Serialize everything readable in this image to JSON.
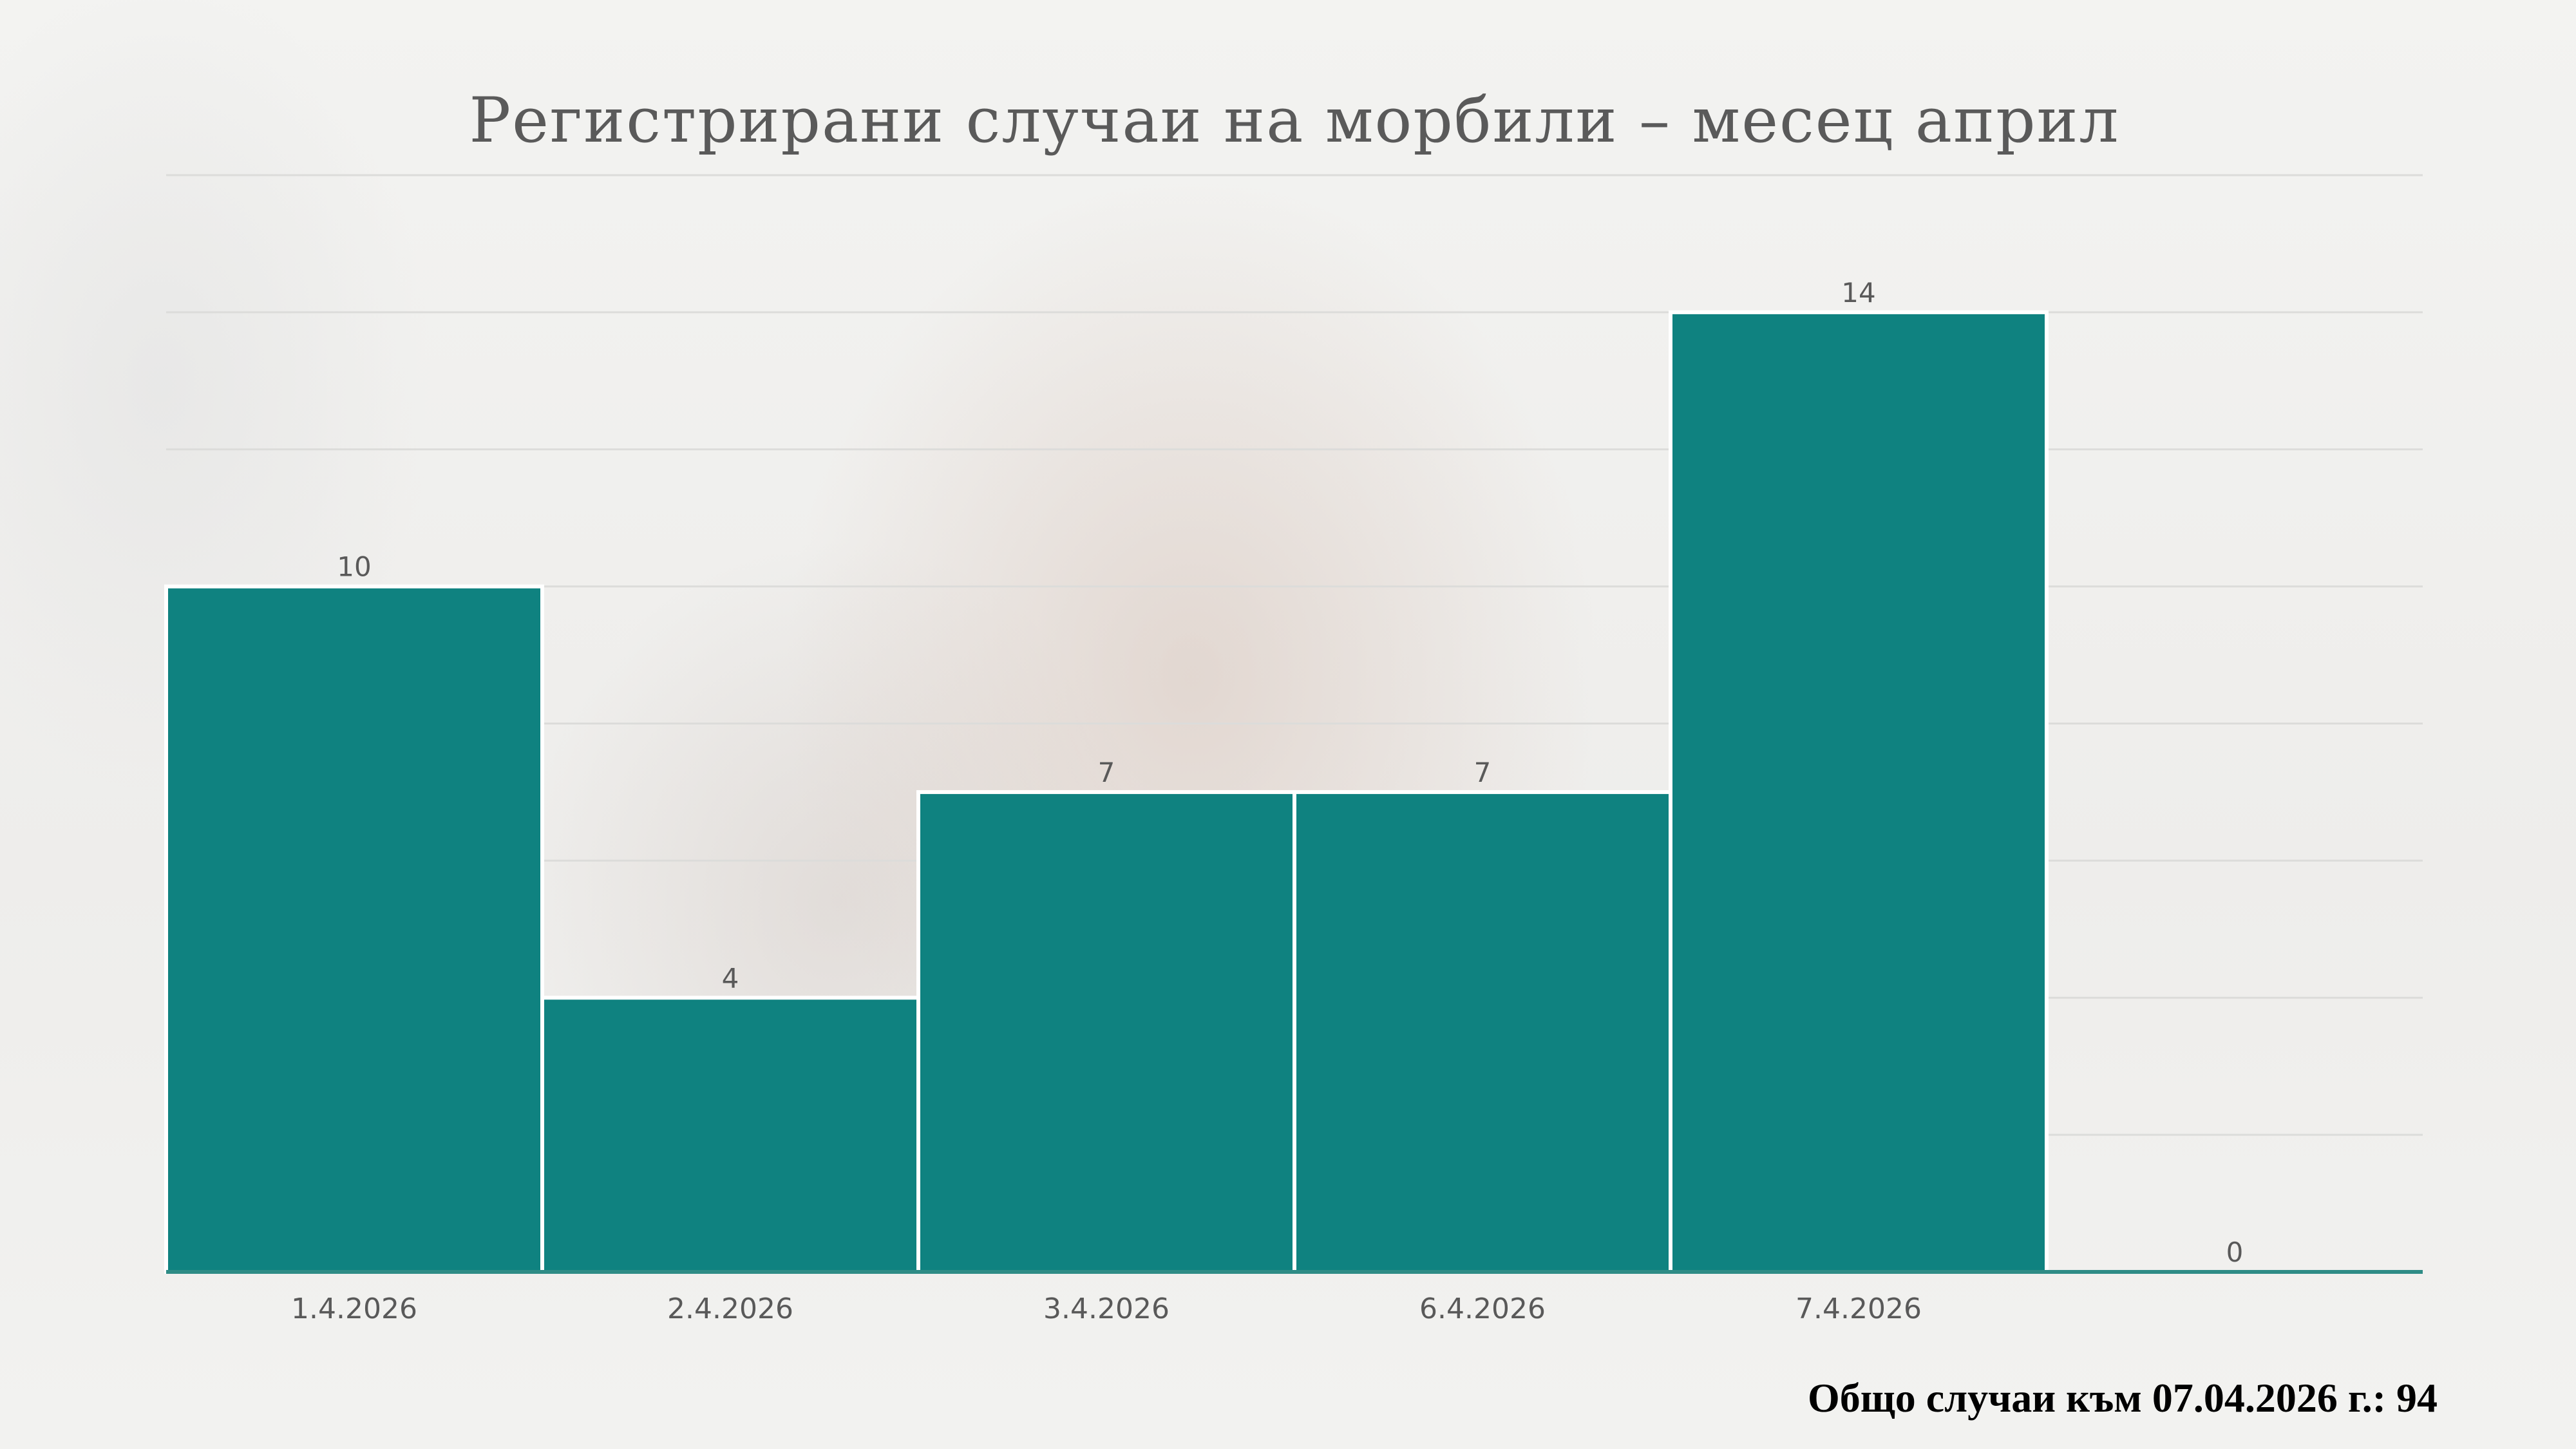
{
  "colors": {
    "bar": "#0f8280",
    "axis": "#2f8c86"
  },
  "footer": {
    "total_text": "Общо случаи към 07.04.2026 г.: 94"
  },
  "chart_data": {
    "type": "bar",
    "title": "Регистрирани случаи на морбили – месец април",
    "xlabel": "",
    "ylabel": "",
    "categories": [
      "1.4.2026",
      "2.4.2026",
      "3.4.2026",
      "6.4.2026",
      "7.4.2026",
      ""
    ],
    "values": [
      10,
      4,
      7,
      7,
      14,
      0
    ],
    "ylim": [
      0,
      16
    ],
    "grid": true,
    "legend": "none"
  }
}
